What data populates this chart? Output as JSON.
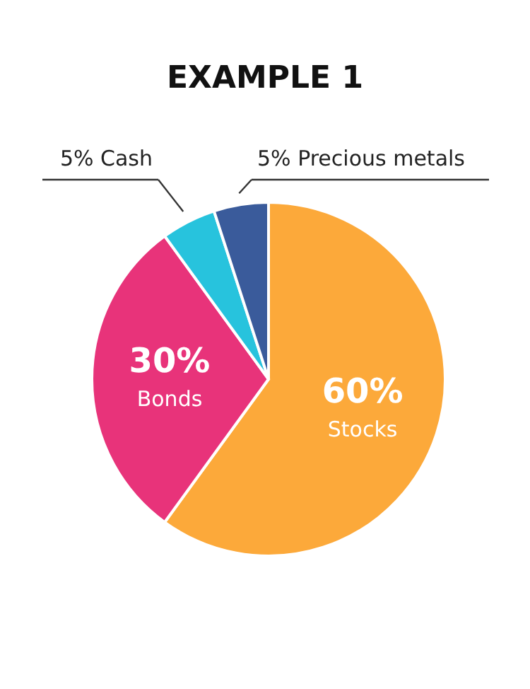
{
  "chart_data": {
    "type": "pie",
    "title": "EXAMPLE 1",
    "categories": [
      "Stocks",
      "Bonds",
      "Cash",
      "Precious metals"
    ],
    "values": [
      60,
      30,
      5,
      5
    ],
    "colors": [
      "#fca93a",
      "#e8337a",
      "#27c3dd",
      "#3a5b9b"
    ],
    "value_labels": [
      "60%",
      "30%",
      "5%",
      "5%"
    ]
  }
}
